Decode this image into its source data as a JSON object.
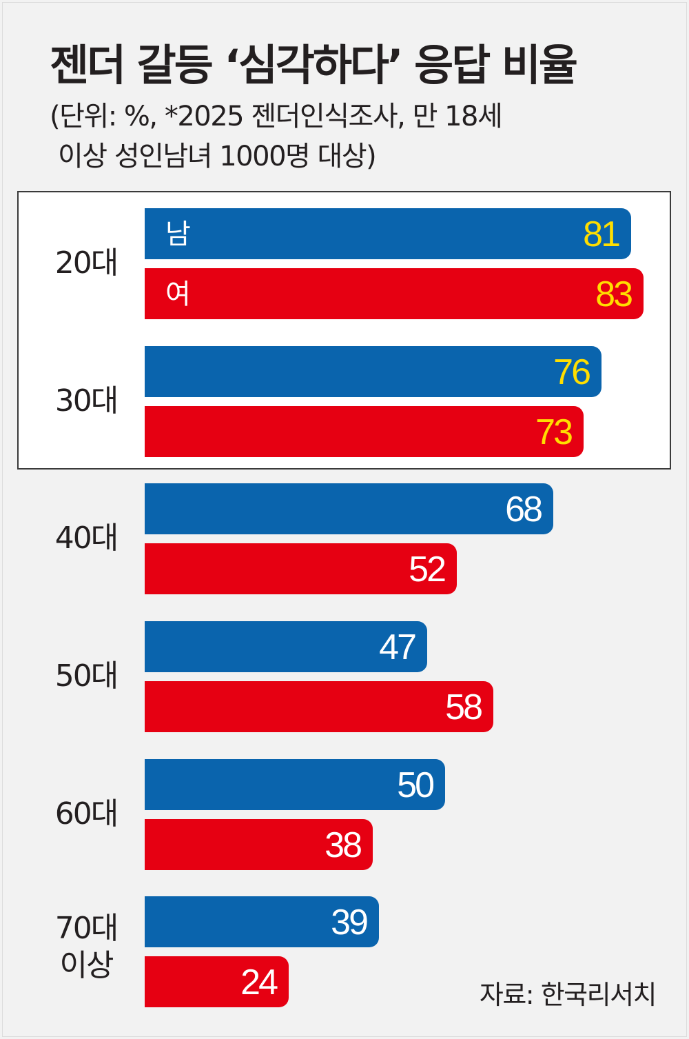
{
  "title": "젠더 갈등 ‘심각하다’ 응답 비율",
  "subtitle_line1": "(단위: %, *2025 젠더인식조사, 만 18세",
  "subtitle_line2": "이상 성인남녀 1000명 대상)",
  "source": "자료: 한국리서치",
  "legend": {
    "male": "남",
    "female": "여"
  },
  "colors": {
    "male": "#0a64ad",
    "female": "#e60012",
    "highlight_value": "#ffde00",
    "background": "#f2f2f2"
  },
  "chart_data": {
    "type": "bar",
    "orientation": "horizontal",
    "title": "젠더 갈등 ‘심각하다’ 응답 비율",
    "unit": "%",
    "categories": [
      "20대",
      "30대",
      "40대",
      "50대",
      "60대",
      "70대 이상"
    ],
    "series": [
      {
        "name": "남",
        "values": [
          81,
          76,
          68,
          47,
          50,
          39
        ]
      },
      {
        "name": "여",
        "values": [
          83,
          73,
          52,
          58,
          38,
          24
        ]
      }
    ],
    "highlighted_categories": [
      "20대",
      "30대"
    ],
    "xlim": [
      0,
      100
    ]
  }
}
